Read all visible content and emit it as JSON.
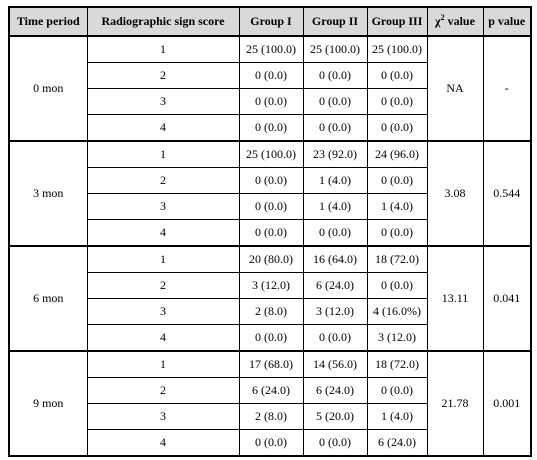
{
  "headers": {
    "time_period": "Time period",
    "score": "Radiographic sign score",
    "group1": "Group I",
    "group2": "Group II",
    "group3": "Group III",
    "chi_prefix": "χ",
    "chi_sup": "2",
    "chi_suffix": " value",
    "p_value": "p value"
  },
  "groups": [
    {
      "time": "0 mon",
      "chi": "NA",
      "p": "-",
      "rows": [
        {
          "score": "1",
          "g1": "25 (100.0)",
          "g2": "25 (100.0)",
          "g3": "25 (100.0)"
        },
        {
          "score": "2",
          "g1": "0 (0.0)",
          "g2": "0 (0.0)",
          "g3": "0 (0.0)"
        },
        {
          "score": "3",
          "g1": "0 (0.0)",
          "g2": "0 (0.0)",
          "g3": "0 (0.0)"
        },
        {
          "score": "4",
          "g1": "0 (0.0)",
          "g2": "0 (0.0)",
          "g3": "0 (0.0)"
        }
      ]
    },
    {
      "time": "3 mon",
      "chi": "3.08",
      "p": "0.544",
      "rows": [
        {
          "score": "1",
          "g1": "25 (100.0)",
          "g2": "23 (92.0)",
          "g3": "24 (96.0)"
        },
        {
          "score": "2",
          "g1": "0 (0.0)",
          "g2": "1 (4.0)",
          "g3": "0 (0.0)"
        },
        {
          "score": "3",
          "g1": "0 (0.0)",
          "g2": "1 (4.0)",
          "g3": "1 (4.0)"
        },
        {
          "score": "4",
          "g1": "0 (0.0)",
          "g2": "0 (0.0)",
          "g3": "0 (0.0)"
        }
      ]
    },
    {
      "time": "6 mon",
      "chi": "13.11",
      "p": "0.041",
      "rows": [
        {
          "score": "1",
          "g1": "20 (80.0)",
          "g2": "16 (64.0)",
          "g3": "18 (72.0)"
        },
        {
          "score": "2",
          "g1": "3 (12.0)",
          "g2": "6 (24.0)",
          "g3": "0 (0.0)"
        },
        {
          "score": "3",
          "g1": "2 (8.0)",
          "g2": "3 (12.0)",
          "g3": "4 (16.0%)"
        },
        {
          "score": "4",
          "g1": "0 (0.0)",
          "g2": "0 (0.0)",
          "g3": "3 (12.0)"
        }
      ]
    },
    {
      "time": "9 mon",
      "chi": "21.78",
      "p": "0.001",
      "rows": [
        {
          "score": "1",
          "g1": "17 (68.0)",
          "g2": "14 (56.0)",
          "g3": "18 (72.0)"
        },
        {
          "score": "2",
          "g1": "6 (24.0)",
          "g2": "6 (24.0)",
          "g3": "0 (0.0)"
        },
        {
          "score": "3",
          "g1": "2 (8.0)",
          "g2": "5 (20.0)",
          "g3": "1 (4.0)"
        },
        {
          "score": "4",
          "g1": "0 (0.0)",
          "g2": "0 (0.0)",
          "g3": "6 (24.0)"
        }
      ]
    }
  ]
}
